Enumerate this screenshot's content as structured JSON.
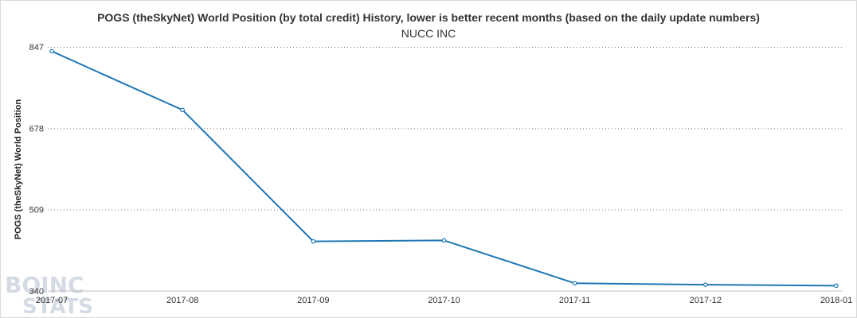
{
  "chart_data": {
    "type": "line",
    "title": "POGS (theSkyNet) World Position (by total credit) History, lower is better recent months (based on the daily update numbers)",
    "subtitle": "NUCC INC",
    "xlabel": "",
    "ylabel": "POGS (theSkyNet) World Position",
    "categories": [
      "2017-07",
      "2017-08",
      "2017-09",
      "2017-10",
      "2017-11",
      "2017-12",
      "2018-01"
    ],
    "yticks": [
      340,
      509,
      678,
      847
    ],
    "ylim": [
      340,
      847
    ],
    "grid": true,
    "series": [
      {
        "values": [
          838,
          716,
          443,
          445,
          356,
          353,
          351
        ],
        "color": "#1f77b4"
      }
    ]
  },
  "watermark": {
    "line1": "BOINC",
    "line2": "STATS"
  }
}
